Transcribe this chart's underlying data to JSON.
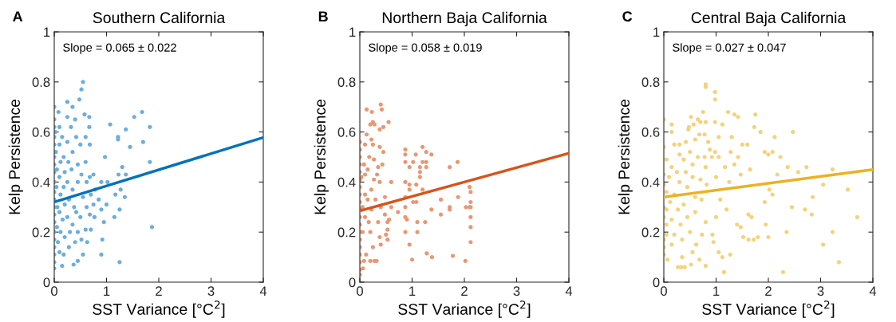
{
  "chart_data": [
    {
      "type": "scatter",
      "title": "Southern California",
      "xlabel": "SST Variance [°C$^{2}$]",
      "ylabel": "Kelp Persistence",
      "annotations": [
        "A",
        "Slope = 0.065 ± 0.022"
      ],
      "xlim": [
        0,
        4
      ],
      "ylim": [
        0,
        1
      ],
      "xticks": [
        0,
        1,
        2,
        3,
        4
      ],
      "yticks": [
        0,
        0.2,
        0.4,
        0.6,
        0.8,
        1
      ],
      "grid": false,
      "series": [
        {
          "marker": "circle",
          "color": "#6aaee0",
          "x": [
            0,
            0,
            0,
            0,
            0,
            0,
            0,
            0,
            0,
            0,
            0,
            0,
            0,
            0,
            0,
            0,
            0,
            0,
            0,
            0,
            0.02,
            0.03,
            0.05,
            0.04,
            0.06,
            0.05,
            0.07,
            0.08,
            0.1,
            0.1,
            0.12,
            0.1,
            0.12,
            0.1,
            0.12,
            0.1,
            0.15,
            0.15,
            0.18,
            0.2,
            0.18,
            0.2,
            0.16,
            0.2,
            0.18,
            0.25,
            0.25,
            0.27,
            0.25,
            0.28,
            0.25,
            0.3,
            0.28,
            0.25,
            0.35,
            0.32,
            0.35,
            0.33,
            0.35,
            0.38,
            0.35,
            0.37,
            0.4,
            0.4,
            0.42,
            0.45,
            0.45,
            0.42,
            0.45,
            0.45,
            0.48,
            0.52,
            0.55,
            0.5,
            0.52,
            0.55,
            0.5,
            0.52,
            0.55,
            0.58,
            0.6,
            0.6,
            0.62,
            0.62,
            0.6,
            0.63,
            0.67,
            0.67,
            0.68,
            0.68,
            0.7,
            0.68,
            0.7,
            0.75,
            0.78,
            0.75,
            0.77,
            0.85,
            0.9,
            0.9,
            0.92,
            0.9,
            0.95,
            0.97,
            1.0,
            1.02,
            1.07,
            1.15,
            1.17,
            1.22,
            1.22,
            1.23,
            1.25,
            1.25,
            1.27,
            1.3,
            1.35,
            1.37,
            1.37,
            1.45,
            1.53,
            1.68,
            1.7,
            1.83,
            1.83,
            1.87
          ],
          "values": [
            0.7,
            0.65,
            0.62,
            0.58,
            0.55,
            0.5,
            0.47,
            0.44,
            0.4,
            0.36,
            0.33,
            0.3,
            0.27,
            0.24,
            0.2,
            0.17,
            0.14,
            0.11,
            0.08,
            0.055,
            0.6,
            0.52,
            0.45,
            0.38,
            0.3,
            0.22,
            0.16,
            0.68,
            0.62,
            0.55,
            0.48,
            0.42,
            0.35,
            0.28,
            0.2,
            0.12,
            0.065,
            0.58,
            0.5,
            0.44,
            0.38,
            0.31,
            0.25,
            0.18,
            0.11,
            0.66,
            0.56,
            0.48,
            0.4,
            0.33,
            0.26,
            0.2,
            0.14,
            0.72,
            0.7,
            0.62,
            0.52,
            0.45,
            0.37,
            0.3,
            0.23,
            0.07,
            0.16,
            0.65,
            0.58,
            0.47,
            0.4,
            0.28,
            0.2,
            0.085,
            0.73,
            0.77,
            0.8,
            0.55,
            0.43,
            0.34,
            0.26,
            0.17,
            0.11,
            0.67,
            0.58,
            0.48,
            0.4,
            0.3,
            0.21,
            0.16,
            0.66,
            0.62,
            0.55,
            0.42,
            0.35,
            0.27,
            0.21,
            0.43,
            0.37,
            0.31,
            0.26,
            0.33,
            0.4,
            0.29,
            0.17,
            0.11,
            0.24,
            0.5,
            0.31,
            0.4,
            0.63,
            0.26,
            0.35,
            0.58,
            0.57,
            0.43,
            0.08,
            0.29,
            0.37,
            0.46,
            0.34,
            0.43,
            0.61,
            0.54,
            0.66,
            0.68,
            0.56,
            0.62,
            0.48,
            0.22
          ]
        },
        {
          "type": "line",
          "marker": "none",
          "color": "#0072bd",
          "x": [
            0,
            4
          ],
          "values": [
            0.32,
            0.578
          ]
        }
      ]
    },
    {
      "type": "scatter",
      "title": "Northern Baja California",
      "xlabel": "SST Variance [°C$^{2}$]",
      "ylabel": "Kelp Persistence",
      "annotations": [
        "B",
        "Slope = 0.058 ± 0.019"
      ],
      "xlim": [
        0,
        4
      ],
      "ylim": [
        0,
        1
      ],
      "xticks": [
        0,
        1,
        2,
        3,
        4
      ],
      "yticks": [
        0,
        0.2,
        0.4,
        0.6,
        0.8,
        1
      ],
      "grid": false,
      "series": [
        {
          "marker": "circle",
          "color": "#eb9672",
          "x": [
            0,
            0,
            0,
            0,
            0,
            0,
            0,
            0,
            0,
            0,
            0,
            0,
            0,
            0,
            0,
            0,
            0,
            0,
            0,
            0.03,
            0.05,
            0.05,
            0.06,
            0.08,
            0.08,
            0.1,
            0.1,
            0.1,
            0.1,
            0.12,
            0.13,
            0.13,
            0.15,
            0.15,
            0.17,
            0.18,
            0.2,
            0.2,
            0.2,
            0.22,
            0.22,
            0.22,
            0.23,
            0.25,
            0.25,
            0.25,
            0.27,
            0.27,
            0.28,
            0.3,
            0.28,
            0.32,
            0.33,
            0.35,
            0.35,
            0.38,
            0.38,
            0.38,
            0.38,
            0.4,
            0.4,
            0.4,
            0.42,
            0.43,
            0.45,
            0.45,
            0.48,
            0.48,
            0.5,
            0.53,
            0.53,
            0.53,
            0.55,
            0.56,
            0.6,
            0.6,
            0.73,
            0.87,
            0.87,
            0.87,
            0.87,
            0.87,
            0.87,
            0.87,
            0.87,
            0.9,
            0.95,
            0.95,
            0.95,
            0.95,
            1.0,
            1.02,
            1.02,
            1.07,
            1.08,
            1.08,
            1.1,
            1.1,
            1.15,
            1.15,
            1.15,
            1.2,
            1.2,
            1.2,
            1.25,
            1.27,
            1.27,
            1.27,
            1.28,
            1.37,
            1.37,
            1.38,
            1.55,
            1.55,
            1.72,
            1.72,
            1.72,
            1.78,
            1.87,
            1.88,
            2.02,
            2.03,
            2.1,
            2.1,
            2.12,
            2.12,
            2.12,
            2.12,
            2.12,
            2.12
          ],
          "values": [
            0.56,
            0.53,
            0.5,
            0.47,
            0.44,
            0.41,
            0.38,
            0.35,
            0.32,
            0.29,
            0.26,
            0.23,
            0.2,
            0.17,
            0.14,
            0.11,
            0.08,
            0.05,
            0.03,
            0.42,
            0.3,
            0.2,
            0.055,
            0.085,
            0.47,
            0.55,
            0.43,
            0.35,
            0.26,
            0.11,
            0.69,
            0.59,
            0.45,
            0.33,
            0.24,
            0.5,
            0.63,
            0.2,
            0.085,
            0.57,
            0.37,
            0.29,
            0.68,
            0.64,
            0.55,
            0.14,
            0.49,
            0.41,
            0.63,
            0.33,
            0.085,
            0.085,
            0.43,
            0.46,
            0.24,
            0.61,
            0.54,
            0.4,
            0.18,
            0.71,
            0.3,
            0.15,
            0.69,
            0.47,
            0.52,
            0.62,
            0.34,
            0.27,
            0.19,
            0.24,
            0.21,
            0.17,
            0.64,
            0.25,
            0.4,
            0.3,
            0.28,
            0.53,
            0.51,
            0.48,
            0.4,
            0.34,
            0.3,
            0.26,
            0.2,
            0.25,
            0.46,
            0.39,
            0.37,
            0.15,
            0.09,
            0.48,
            0.32,
            0.51,
            0.39,
            0.32,
            0.24,
            0.2,
            0.46,
            0.44,
            0.42,
            0.54,
            0.48,
            0.37,
            0.24,
            0.52,
            0.48,
            0.46,
            0.115,
            0.51,
            0.29,
            0.1,
            0.33,
            0.27,
            0.46,
            0.3,
            0.29,
            0.105,
            0.48,
            0.34,
            0.085,
            0.3,
            0.38,
            0.3,
            0.36,
            0.32,
            0.3,
            0.26,
            0.22,
            0.16
          ]
        },
        {
          "type": "line",
          "marker": "none",
          "color": "#d95319",
          "x": [
            0,
            4
          ],
          "values": [
            0.285,
            0.515
          ]
        }
      ]
    },
    {
      "type": "scatter",
      "title": "Central Baja California",
      "xlabel": "SST Variance [°C$^{2}$]",
      "ylabel": "Kelp Persistence",
      "annotations": [
        "C",
        "Slope = 0.027 ± 0.047"
      ],
      "xlim": [
        0,
        4
      ],
      "ylim": [
        0,
        1
      ],
      "xticks": [
        0,
        1,
        2,
        3,
        4
      ],
      "yticks": [
        0,
        0.2,
        0.4,
        0.6,
        0.8,
        1
      ],
      "grid": false,
      "series": [
        {
          "marker": "circle",
          "color": "#f5d27a",
          "x": [
            0,
            0,
            0,
            0,
            0,
            0,
            0,
            0,
            0,
            0.05,
            0.05,
            0.05,
            0.05,
            0.05,
            0.07,
            0.1,
            0.12,
            0.15,
            0.15,
            0.15,
            0.15,
            0.15,
            0.2,
            0.2,
            0.2,
            0.25,
            0.27,
            0.27,
            0.3,
            0.3,
            0.3,
            0.32,
            0.33,
            0.35,
            0.35,
            0.38,
            0.38,
            0.4,
            0.42,
            0.42,
            0.45,
            0.45,
            0.47,
            0.48,
            0.5,
            0.5,
            0.52,
            0.52,
            0.55,
            0.55,
            0.57,
            0.55,
            0.6,
            0.6,
            0.6,
            0.62,
            0.65,
            0.65,
            0.68,
            0.68,
            0.7,
            0.7,
            0.72,
            0.73,
            0.75,
            0.78,
            0.78,
            0.8,
            0.8,
            0.8,
            0.8,
            0.8,
            0.8,
            0.82,
            0.85,
            0.88,
            0.92,
            0.93,
            0.95,
            0.98,
            0.98,
            0.98,
            0.98,
            1.0,
            1.0,
            1.05,
            1.05,
            1.05,
            1.08,
            1.12,
            1.12,
            1.15,
            1.17,
            1.2,
            1.23,
            1.25,
            1.27,
            1.28,
            1.3,
            1.35,
            1.35,
            1.4,
            1.42,
            1.42,
            1.47,
            1.47,
            1.5,
            1.52,
            1.6,
            1.62,
            1.62,
            1.65,
            1.68,
            1.72,
            1.73,
            1.75,
            1.8,
            1.85,
            1.93,
            1.93,
            1.95,
            2.0,
            2.0,
            2.02,
            2.08,
            2.08,
            2.12,
            2.17,
            2.23,
            2.28,
            2.35,
            2.37,
            2.45,
            2.47,
            2.57,
            2.7,
            2.73,
            2.83,
            2.85,
            3.05,
            3.05,
            3.23,
            3.23,
            3.35,
            3.52,
            3.7
          ],
          "values": [
            0.65,
            0.54,
            0.43,
            0.39,
            0.3,
            0.26,
            0.17,
            0.14,
            0.11,
            0.49,
            0.36,
            0.29,
            0.23,
            0.19,
            0.09,
            0.42,
            0.32,
            0.63,
            0.6,
            0.46,
            0.25,
            0.15,
            0.55,
            0.35,
            0.19,
            0.44,
            0.29,
            0.06,
            0.55,
            0.51,
            0.4,
            0.23,
            0.06,
            0.1,
            0.17,
            0.49,
            0.31,
            0.06,
            0.56,
            0.44,
            0.38,
            0.26,
            0.61,
            0.62,
            0.52,
            0.2,
            0.66,
            0.07,
            0.47,
            0.42,
            0.63,
            0.12,
            0.57,
            0.34,
            0.28,
            0.15,
            0.65,
            0.5,
            0.59,
            0.09,
            0.64,
            0.41,
            0.33,
            0.19,
            0.68,
            0.5,
            0.59,
            0.79,
            0.78,
            0.64,
            0.46,
            0.24,
            0.065,
            0.39,
            0.56,
            0.53,
            0.5,
            0.19,
            0.16,
            0.76,
            0.73,
            0.64,
            0.52,
            0.42,
            0.26,
            0.58,
            0.5,
            0.12,
            0.33,
            0.63,
            0.1,
            0.04,
            0.46,
            0.29,
            0.68,
            0.4,
            0.11,
            0.52,
            0.58,
            0.47,
            0.67,
            0.23,
            0.66,
            0.5,
            0.43,
            0.22,
            0.55,
            0.18,
            0.55,
            0.17,
            0.27,
            0.45,
            0.26,
            0.17,
            0.62,
            0.67,
            0.18,
            0.6,
            0.52,
            0.32,
            0.23,
            0.18,
            0.51,
            0.37,
            0.52,
            0.35,
            0.58,
            0.43,
            0.5,
            0.04,
            0.2,
            0.46,
            0.3,
            0.6,
            0.44,
            0.29,
            0.46,
            0.27,
            0.34,
            0.39,
            0.15,
            0.45,
            0.2,
            0.08,
            0.37,
            0.26
          ]
        },
        {
          "type": "line",
          "marker": "none",
          "color": "#edb120",
          "x": [
            0,
            4
          ],
          "values": [
            0.34,
            0.45
          ]
        }
      ]
    }
  ]
}
